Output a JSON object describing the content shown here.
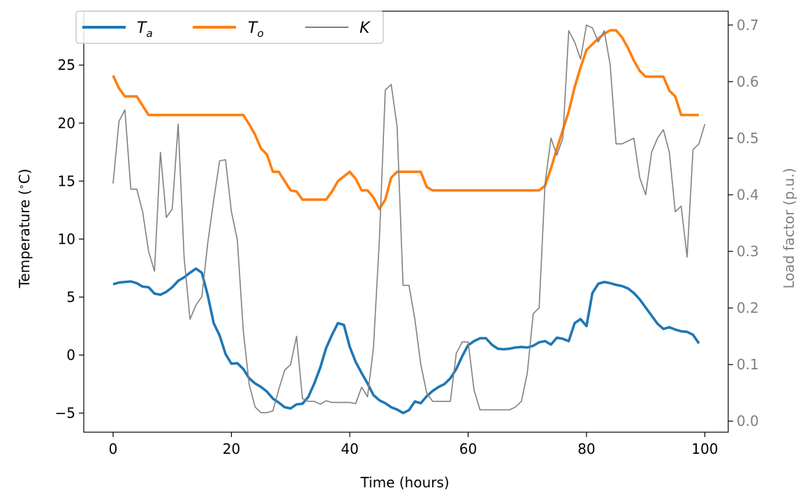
{
  "chart_data": {
    "type": "line",
    "xlabel": "Time (hours)",
    "ylabel": "Temperature (",
    "ylabel_degree": "∘",
    "ylabel_unit": "C)",
    "y2label": "Load factor (p.u.)",
    "xlim": [
      -4.95,
      103.95
    ],
    "ylim": [
      -6.65,
      29.65
    ],
    "y2lim": [
      -0.0195,
      0.7245
    ],
    "x_ticks": [
      0,
      20,
      40,
      60,
      80,
      100
    ],
    "y_ticks": [
      -5,
      0,
      5,
      10,
      15,
      20,
      25
    ],
    "y2_ticks": [
      0.0,
      0.1,
      0.2,
      0.3,
      0.4,
      0.5,
      0.6,
      0.7
    ],
    "x_tick_labels": [
      "0",
      "20",
      "40",
      "60",
      "80",
      "100"
    ],
    "y_tick_labels": [
      "−5",
      "0",
      "5",
      "10",
      "15",
      "20",
      "25"
    ],
    "y2_tick_labels": [
      "0.0",
      "0.1",
      "0.2",
      "0.3",
      "0.4",
      "0.5",
      "0.6",
      "0.7"
    ],
    "grid": false,
    "legend_position": "top-left",
    "series": [
      {
        "name": "T",
        "name_sub": "a",
        "axis": "left",
        "color": "#1f77b4",
        "values": [
          6.1,
          6.25,
          6.3,
          6.35,
          6.2,
          5.9,
          5.85,
          5.3,
          5.2,
          5.45,
          5.85,
          6.4,
          6.7,
          7.1,
          7.45,
          7.1,
          5.15,
          2.75,
          1.7,
          0.1,
          -0.75,
          -0.7,
          -1.2,
          -2.0,
          -2.45,
          -2.75,
          -3.15,
          -3.75,
          -4.1,
          -4.5,
          -4.6,
          -4.25,
          -4.2,
          -3.6,
          -2.45,
          -1.1,
          0.6,
          1.75,
          2.75,
          2.6,
          0.7,
          -0.6,
          -1.55,
          -2.45,
          -3.45,
          -3.9,
          -4.15,
          -4.5,
          -4.7,
          -5.0,
          -4.75,
          -4.0,
          -4.15,
          -3.55,
          -3.1,
          -2.75,
          -2.5,
          -2.0,
          -1.2,
          -0.1,
          0.85,
          1.2,
          1.45,
          1.45,
          0.9,
          0.55,
          0.5,
          0.55,
          0.65,
          0.7,
          0.65,
          0.8,
          1.1,
          1.2,
          0.9,
          1.5,
          1.4,
          1.2,
          2.75,
          3.1,
          2.5,
          5.35,
          6.15,
          6.3,
          6.2,
          6.05,
          5.95,
          5.75,
          5.35,
          4.8,
          4.1,
          3.4,
          2.7,
          2.25,
          2.4,
          2.2,
          2.05,
          2.0,
          1.75,
          1.0
        ]
      },
      {
        "name": "T",
        "name_sub": "o",
        "axis": "left",
        "color": "#ff7f0e",
        "values": [
          24.1,
          23.0,
          22.3,
          22.3,
          22.3,
          21.5,
          20.7,
          20.7,
          20.7,
          20.7,
          20.7,
          20.7,
          20.7,
          20.7,
          20.7,
          20.7,
          20.7,
          20.7,
          20.7,
          20.7,
          20.7,
          20.7,
          20.7,
          19.9,
          19.0,
          17.8,
          17.3,
          15.8,
          15.8,
          15.0,
          14.2,
          14.1,
          13.4,
          13.4,
          13.4,
          13.4,
          13.4,
          14.1,
          15.0,
          15.4,
          15.8,
          15.2,
          14.2,
          14.2,
          13.6,
          12.6,
          13.4,
          15.3,
          15.8,
          15.8,
          15.8,
          15.8,
          15.8,
          14.5,
          14.2,
          14.2,
          14.2,
          14.2,
          14.2,
          14.2,
          14.2,
          14.2,
          14.2,
          14.2,
          14.2,
          14.2,
          14.2,
          14.2,
          14.2,
          14.2,
          14.2,
          14.2,
          14.2,
          14.6,
          16.1,
          17.8,
          19.4,
          21.0,
          23.1,
          24.8,
          26.3,
          26.8,
          27.3,
          27.7,
          28.0,
          28.0,
          27.4,
          26.5,
          25.4,
          24.5,
          24.0,
          24.0,
          24.0,
          24.0,
          22.8,
          22.3,
          20.7,
          20.7,
          20.7,
          20.7
        ]
      },
      {
        "name": "K",
        "axis": "right",
        "color": "#808080",
        "values": [
          0.42,
          0.53,
          0.55,
          0.41,
          0.41,
          0.37,
          0.3,
          0.265,
          0.475,
          0.36,
          0.375,
          0.525,
          0.29,
          0.18,
          0.205,
          0.22,
          0.315,
          0.39,
          0.46,
          0.462,
          0.37,
          0.32,
          0.16,
          0.065,
          0.025,
          0.015,
          0.015,
          0.018,
          0.056,
          0.09,
          0.1,
          0.15,
          0.04,
          0.035,
          0.035,
          0.03,
          0.036,
          0.033,
          0.033,
          0.033,
          0.033,
          0.031,
          0.06,
          0.043,
          0.13,
          0.32,
          0.585,
          0.595,
          0.52,
          0.24,
          0.24,
          0.18,
          0.1,
          0.05,
          0.035,
          0.035,
          0.035,
          0.035,
          0.12,
          0.14,
          0.14,
          0.055,
          0.02,
          0.02,
          0.02,
          0.02,
          0.02,
          0.02,
          0.025,
          0.035,
          0.085,
          0.19,
          0.2,
          0.42,
          0.5,
          0.47,
          0.5,
          0.69,
          0.67,
          0.64,
          0.7,
          0.695,
          0.67,
          0.69,
          0.63,
          0.49,
          0.49,
          0.495,
          0.5,
          0.43,
          0.4,
          0.475,
          0.5,
          0.515,
          0.475,
          0.37,
          0.38,
          0.29,
          0.48,
          0.49,
          0.525
        ]
      }
    ]
  }
}
